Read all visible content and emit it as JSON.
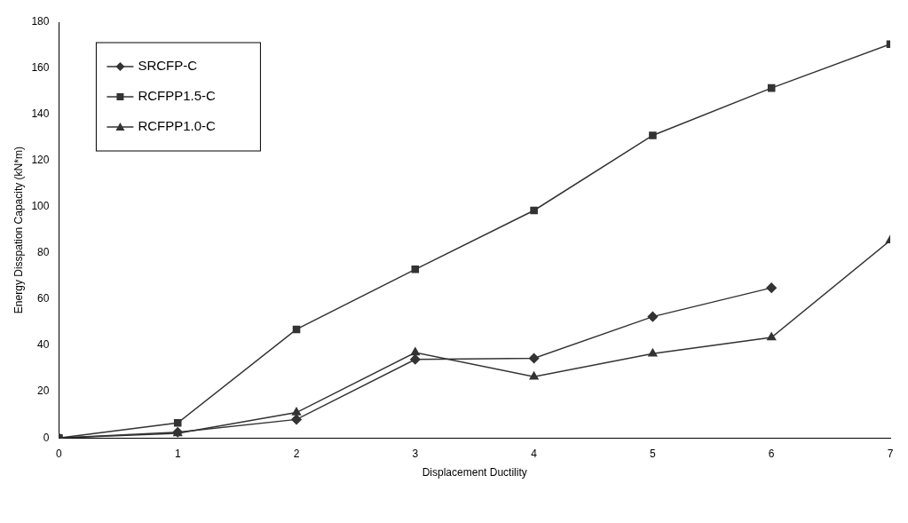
{
  "chart_data": {
    "type": "line",
    "x_label": "Displacement Ductility",
    "y_label": "Energy Disspation Capacity (kN*m)",
    "x": [
      0,
      1,
      2,
      3,
      4,
      5,
      6,
      7
    ],
    "series": [
      {
        "name": "SRCFP-C",
        "color": "#333333",
        "marker": "diamond",
        "values": [
          0,
          2.5,
          8,
          34,
          34.5,
          52.5,
          65,
          null
        ]
      },
      {
        "name": "RCFPP1.5-C",
        "color": "#333333",
        "marker": "square",
        "values": [
          0,
          6.5,
          47,
          73,
          98.5,
          131,
          151.5,
          170.5
        ]
      },
      {
        "name": "RCFPP1.0-C",
        "color": "#333333",
        "marker": "triangle",
        "values": [
          0,
          2,
          11,
          37,
          26.5,
          36.5,
          43.5,
          85.5
        ]
      }
    ],
    "xlim": [
      0,
      7
    ],
    "xticks": [
      0,
      1,
      2,
      3,
      4,
      5,
      6,
      7
    ],
    "ylim": [
      0,
      180
    ],
    "yticks": [
      0,
      20,
      40,
      60,
      80,
      100,
      120,
      140,
      160,
      180
    ],
    "grid": false,
    "legend": "upper left"
  }
}
